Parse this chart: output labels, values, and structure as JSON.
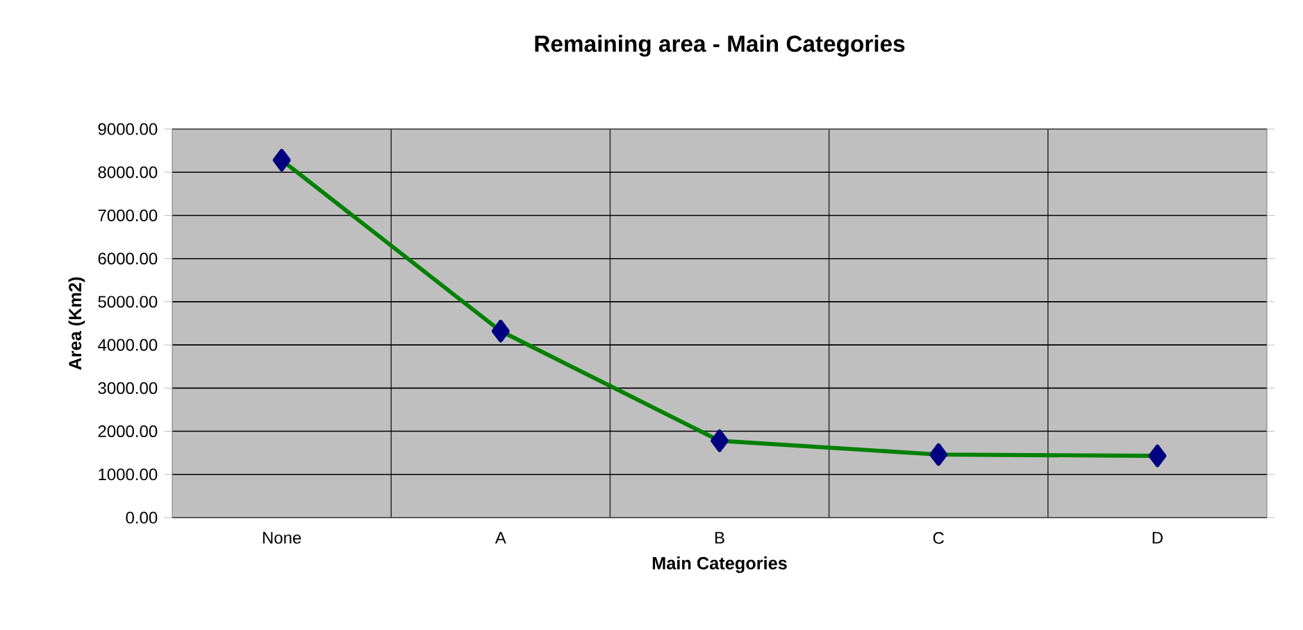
{
  "chart_data": {
    "type": "line",
    "title": "Remaining area - Main Categories",
    "xlabel": "Main Categories",
    "ylabel": "Area (Km2)",
    "categories": [
      "None",
      "A",
      "B",
      "C",
      "D"
    ],
    "series": [
      {
        "color": "#008000",
        "values": [
          8280,
          4320,
          1780,
          1460,
          1430
        ]
      }
    ],
    "ylim": [
      0,
      9000
    ],
    "yticks": [
      {
        "value": 0,
        "label": "0.00"
      },
      {
        "value": 1000,
        "label": "1000.00"
      },
      {
        "value": 2000,
        "label": "2000.00"
      },
      {
        "value": 3000,
        "label": "3000.00"
      },
      {
        "value": 4000,
        "label": "4000.00"
      },
      {
        "value": 5000,
        "label": "5000.00"
      },
      {
        "value": 6000,
        "label": "6000.00"
      },
      {
        "value": 7000,
        "label": "7000.00"
      },
      {
        "value": 8000,
        "label": "8000.00"
      },
      {
        "value": 9000,
        "label": "9000.00"
      }
    ],
    "grid": true,
    "marker": "diamond",
    "line_style": "solid"
  }
}
